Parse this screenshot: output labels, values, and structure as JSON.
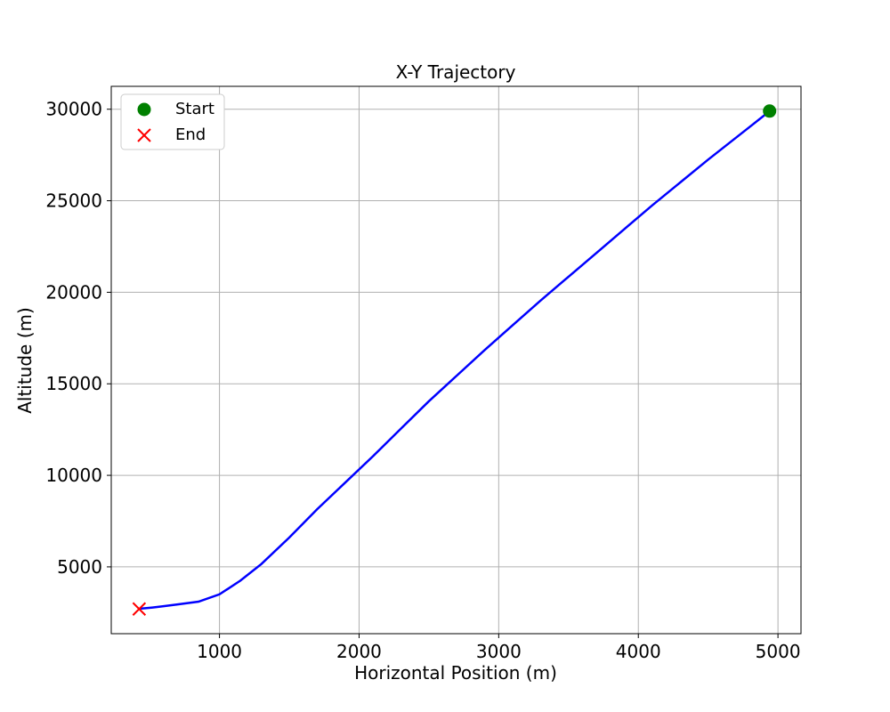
{
  "chart_data": {
    "type": "line",
    "title": "X-Y Trajectory",
    "xlabel": "Horizontal Position (m)",
    "ylabel": "Altitude (m)",
    "xlim": [
      225,
      5165
    ],
    "ylim": [
      1350,
      31250
    ],
    "xticks": [
      1000,
      2000,
      3000,
      4000,
      5000
    ],
    "yticks": [
      5000,
      10000,
      15000,
      20000,
      25000,
      30000
    ],
    "grid": true,
    "legend_position": "upper-left",
    "colors": {
      "line": "#0000ff",
      "start": "#008000",
      "end": "#ff0000",
      "grid": "#b0b0b0"
    },
    "series": [
      {
        "x": [
          4940,
          4900,
          4800,
          4650,
          4500,
          4300,
          4100,
          3900,
          3700,
          3500,
          3300,
          3100,
          2900,
          2700,
          2500,
          2300,
          2100,
          1900,
          1700,
          1500,
          1300,
          1150,
          1000,
          850,
          700,
          600,
          520,
          470,
          440,
          430,
          425
        ],
        "y": [
          29900,
          29650,
          29050,
          28150,
          27250,
          26000,
          24750,
          23450,
          22150,
          20850,
          19550,
          18200,
          16850,
          15450,
          14050,
          12550,
          11050,
          9600,
          8150,
          6600,
          5150,
          4250,
          3500,
          3100,
          2950,
          2850,
          2780,
          2740,
          2720,
          2710,
          2700
        ]
      }
    ],
    "markers": [
      {
        "name": "Start",
        "x": 4940,
        "y": 29900,
        "symbol": "circle"
      },
      {
        "name": "End",
        "x": 425,
        "y": 2700,
        "symbol": "x"
      }
    ]
  }
}
